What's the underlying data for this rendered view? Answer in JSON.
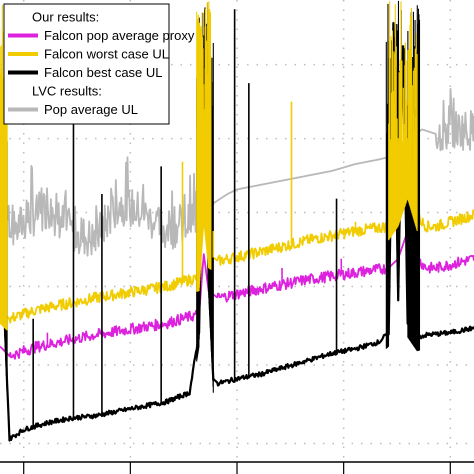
{
  "chart_data": {
    "type": "line",
    "title": "",
    "xlabel": "",
    "ylabel": "",
    "xlim": [
      0,
      100
    ],
    "ylim": [
      0,
      100
    ],
    "grid": true,
    "legend_position": "top-left",
    "legend": [
      {
        "kind": "heading",
        "text": "Our results:"
      },
      {
        "kind": "entry",
        "text": "Falcon pop average proxy",
        "series": 0
      },
      {
        "kind": "entry",
        "text": "Falcon worst case UL",
        "series": 1
      },
      {
        "kind": "entry",
        "text": "Falcon best case UL",
        "series": 2
      },
      {
        "kind": "heading",
        "text": "LVC results:"
      },
      {
        "kind": "entry",
        "text": "Pop average UL",
        "series": 3
      }
    ],
    "series": [
      {
        "name": "Falcon pop average proxy",
        "color": "#dd22dd",
        "x": [
          0,
          2,
          8,
          20,
          35,
          42,
          43,
          44,
          46,
          55,
          65,
          75,
          82,
          84,
          86,
          88,
          90,
          92,
          100
        ],
        "y": [
          25,
          23,
          25,
          27.5,
          30,
          32,
          45,
          37,
          35.5,
          37.5,
          39.5,
          41,
          42,
          44,
          50,
          44,
          42,
          42,
          44
        ]
      },
      {
        "name": "Falcon worst case UL",
        "color": "#f0cc00",
        "x": [
          0,
          2,
          8,
          20,
          35,
          42,
          43,
          44,
          46,
          55,
          65,
          75,
          82,
          84,
          86,
          88,
          90,
          92,
          100
        ],
        "y": [
          33,
          31,
          33,
          35.5,
          38,
          40,
          55,
          45,
          43.5,
          45.5,
          48,
          50,
          51,
          54,
          60,
          53,
          51,
          51,
          53.5
        ]
      },
      {
        "name": "Falcon best case UL",
        "color": "#000000",
        "x": [
          0,
          1,
          2,
          5,
          10,
          15,
          20,
          25,
          30,
          35,
          40,
          42,
          43,
          44,
          45,
          46,
          50,
          55,
          60,
          65,
          70,
          75,
          80,
          82,
          83,
          84,
          85,
          86,
          88,
          90,
          95,
          100
        ],
        "y": [
          55,
          30,
          5,
          7,
          8.5,
          9.5,
          10,
          11,
          12,
          13,
          15,
          28,
          90,
          40,
          18,
          17,
          18,
          19,
          20.5,
          22,
          23.5,
          24.5,
          26,
          28,
          95,
          35,
          90,
          30,
          27,
          27.5,
          28,
          29
        ]
      },
      {
        "name": "Pop average UL",
        "color": "#b8b8b8",
        "x": [
          1,
          3,
          5,
          10,
          15,
          20,
          25,
          30,
          35,
          40,
          42,
          45,
          48,
          50,
          55,
          60,
          65,
          70,
          75,
          80,
          82,
          89,
          92,
          95,
          100
        ],
        "y": [
          55,
          50,
          52,
          55,
          50,
          48,
          56,
          54,
          50,
          52,
          55,
          56,
          58,
          59,
          60,
          61,
          62,
          63,
          64.5,
          65.5,
          66,
          72,
          71,
          72,
          72
        ]
      }
    ],
    "spikes": [
      {
        "series": 2,
        "x": 7,
        "top": 31
      },
      {
        "series": 2,
        "x": 15.5,
        "top": 78
      },
      {
        "series": 2,
        "x": 21.5,
        "top": 58
      },
      {
        "series": 2,
        "x": 34,
        "top": 64
      },
      {
        "series": 2,
        "x": 49.5,
        "top": 98
      },
      {
        "series": 2,
        "x": 52.5,
        "top": 82
      },
      {
        "series": 2,
        "x": 71,
        "top": 57
      },
      {
        "series": 1,
        "x": 38.5,
        "top": 65
      },
      {
        "series": 1,
        "x": 61.5,
        "top": 78
      },
      {
        "series": 1,
        "x": 45,
        "top": 50
      },
      {
        "series": 1,
        "x": 67,
        "top": 49
      },
      {
        "series": 1,
        "x": 75,
        "top": 52
      },
      {
        "series": 0,
        "x": 59.5,
        "top": 42
      },
      {
        "series": 0,
        "x": 72,
        "top": 44
      },
      {
        "series": 0,
        "x": 10,
        "top": 28
      }
    ],
    "bursts": [
      {
        "series": 2,
        "x0": 41.5,
        "x1": 45,
        "top": 100
      },
      {
        "series": 1,
        "x0": 41.5,
        "x1": 44.5,
        "top": 100
      },
      {
        "series": 2,
        "x0": 81.5,
        "x1": 88.5,
        "top": 100
      },
      {
        "series": 1,
        "x0": 82,
        "x1": 88,
        "top": 100
      },
      {
        "series": 2,
        "x0": -1,
        "x1": 1.5,
        "top": 82
      },
      {
        "series": 1,
        "x0": -1,
        "x1": 1.5,
        "top": 100
      }
    ]
  }
}
